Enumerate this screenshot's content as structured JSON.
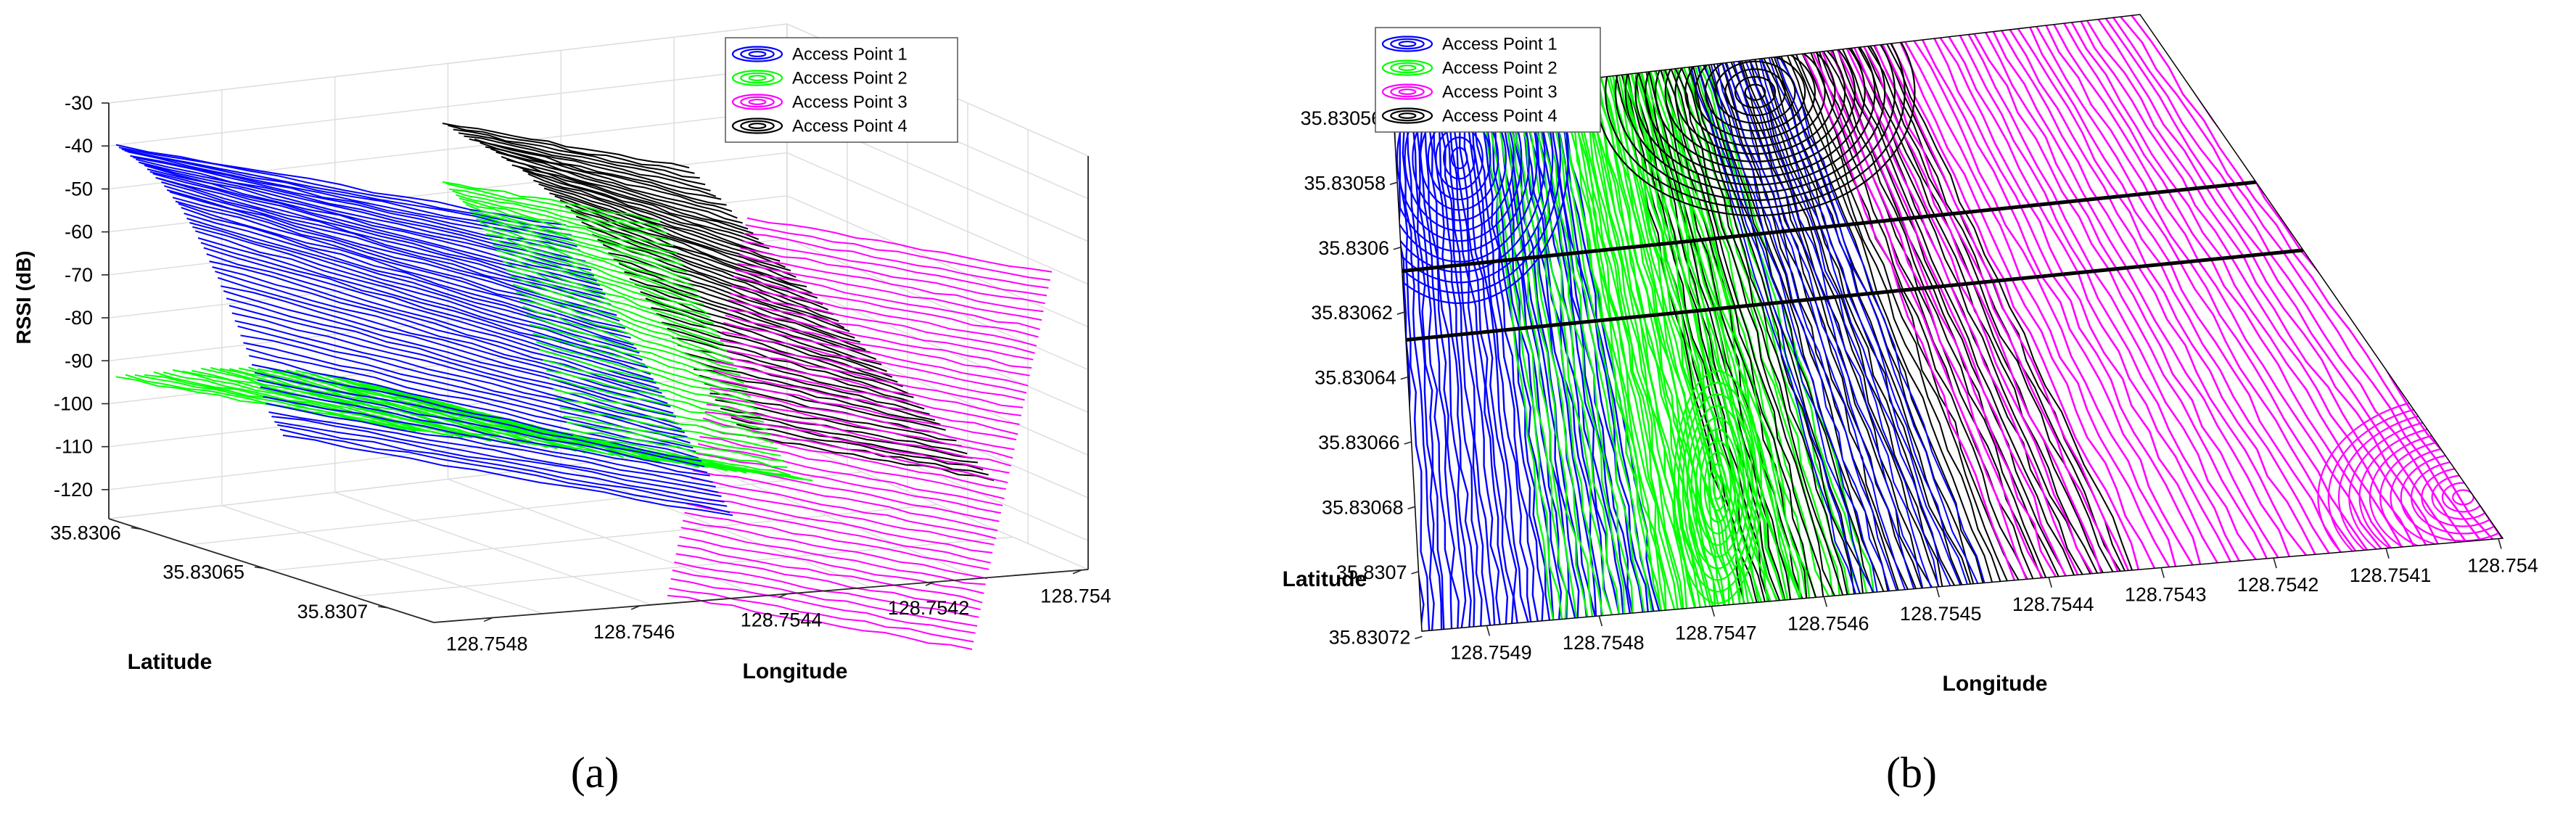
{
  "chart_data": [
    {
      "id": "a",
      "type": "3d-contour",
      "caption": "(a)",
      "zlabel": "RSSI (dB)",
      "xlabel": "Longitude",
      "ylabel": "Latitude",
      "z_ticks": [
        "-30",
        "-40",
        "-50",
        "-60",
        "-70",
        "-80",
        "-90",
        "-100",
        "-110",
        "-120"
      ],
      "x_ticks": [
        "128.7548",
        "128.7546",
        "128.7544",
        "128.7542",
        "128.754"
      ],
      "y_ticks": [
        "35.8306",
        "35.83065",
        "35.8307"
      ],
      "zlim": [
        -125,
        -30
      ],
      "grid": true,
      "legend_position": "top-right",
      "series": [
        {
          "name": "Access Point 1",
          "color": "#0000ff"
        },
        {
          "name": "Access Point 2",
          "color": "#00ff00"
        },
        {
          "name": "Access Point 3",
          "color": "#ff00ff"
        },
        {
          "name": "Access Point 4",
          "color": "#000000"
        }
      ]
    },
    {
      "id": "b",
      "type": "contour",
      "caption": "(b)",
      "xlabel": "Longitude",
      "ylabel": "Latitude",
      "x_ticks": [
        "128.7549",
        "128.7548",
        "128.7547",
        "128.7546",
        "128.7545",
        "128.7544",
        "128.7543",
        "128.7542",
        "128.7541",
        "128.754"
      ],
      "y_ticks": [
        "35.83056",
        "35.83058",
        "35.8306",
        "35.83062",
        "35.83064",
        "35.83066",
        "35.83068",
        "35.8307",
        "35.83072"
      ],
      "legend_position": "top-left",
      "series": [
        {
          "name": "Access Point 1",
          "color": "#0000ff"
        },
        {
          "name": "Access Point 2",
          "color": "#00ff00"
        },
        {
          "name": "Access Point 3",
          "color": "#ff00ff"
        },
        {
          "name": "Access Point 4",
          "color": "#000000"
        }
      ]
    }
  ]
}
